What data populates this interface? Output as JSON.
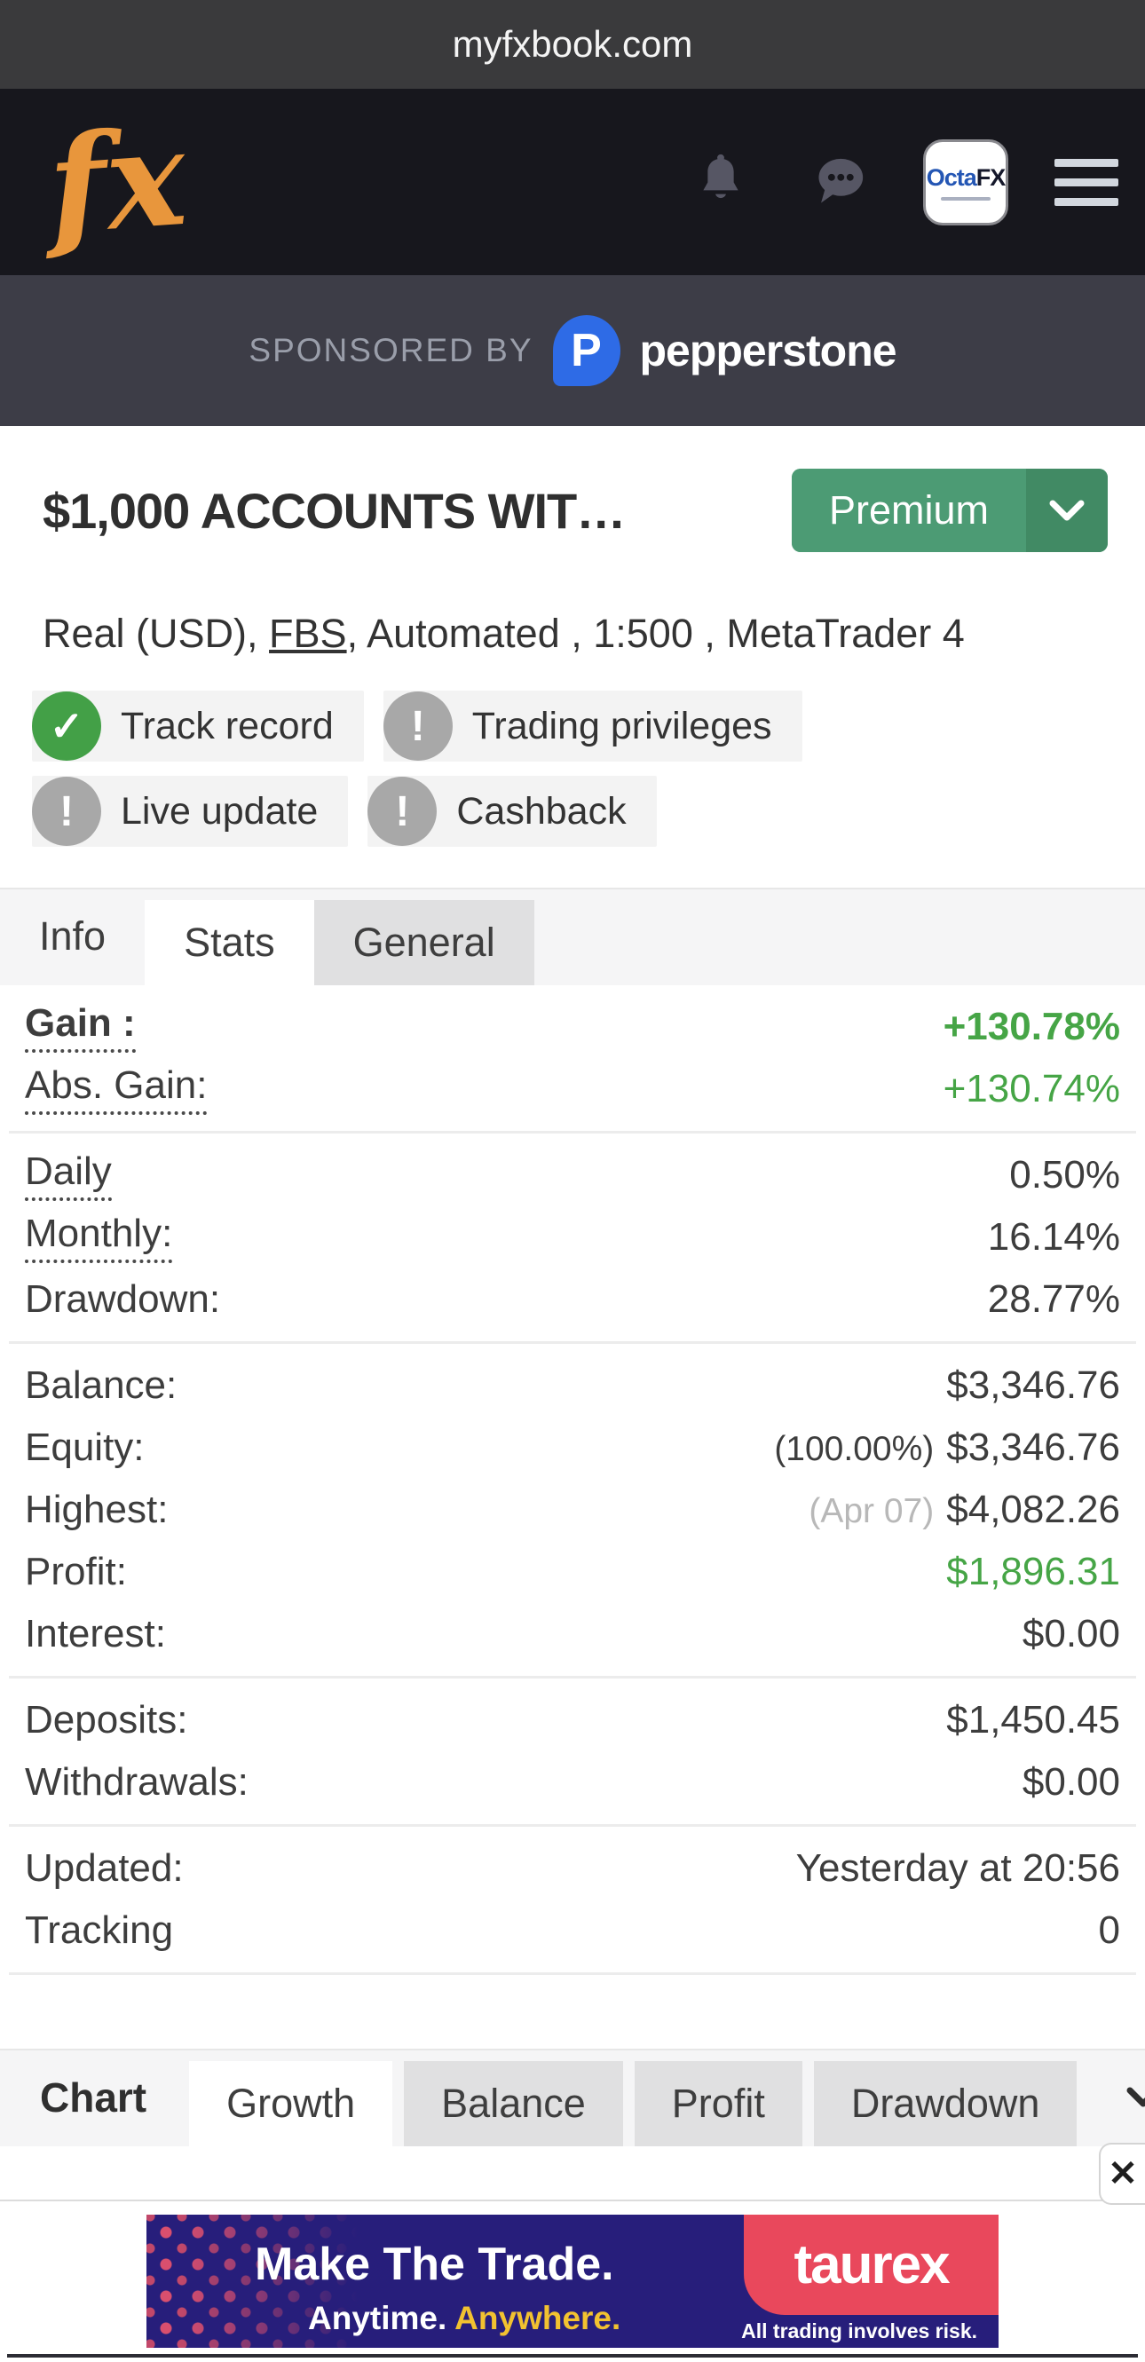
{
  "browser_bar": {
    "url": "myfxbook.com"
  },
  "header": {
    "logo_text": "fx",
    "broker_logo": {
      "blue_part": "Octa",
      "dark_part": "FX"
    }
  },
  "sponsor": {
    "label": "SPONSORED BY",
    "brand_initial": "P",
    "brand": "pepperstone",
    "brand_color": "#2E6BE6"
  },
  "account": {
    "title": "$1,000 ACCOUNTS WIT…",
    "premium_label": "Premium",
    "subtitle": {
      "pre": "Real (USD), ",
      "link": "FBS",
      "post": ", Automated , 1:500 , MetaTrader 4"
    },
    "badges": [
      {
        "label": "Track record",
        "status": "ok",
        "glyph": "✓"
      },
      {
        "label": "Trading privileges",
        "status": "warn",
        "glyph": "!"
      },
      {
        "label": "Live update",
        "status": "warn",
        "glyph": "!"
      },
      {
        "label": "Cashback",
        "status": "warn",
        "glyph": "!"
      }
    ]
  },
  "info_tabs": [
    {
      "label": "Info",
      "style": "plain"
    },
    {
      "label": "Stats",
      "style": "active"
    },
    {
      "label": "General",
      "style": "gray"
    }
  ],
  "stats": {
    "groups": [
      [
        {
          "label": "Gain :",
          "value": "+130.78%",
          "dotted": true,
          "bold": true,
          "green": true
        },
        {
          "label": "Abs. Gain:",
          "value": "+130.74%",
          "dotted": true,
          "green": true
        }
      ],
      [
        {
          "label": "Daily",
          "value": "0.50%",
          "dotted": true
        },
        {
          "label": "Monthly:",
          "value": "16.14%",
          "dotted": true
        },
        {
          "label": "Drawdown:",
          "value": "28.77%"
        }
      ],
      [
        {
          "label": "Balance:",
          "value": "$3,346.76"
        },
        {
          "label": "Equity:",
          "prefix": "(100.00%)",
          "value": "$3,346.76"
        },
        {
          "label": "Highest:",
          "prefix": "(Apr 07)",
          "prefix_muted": true,
          "value": "$4,082.26"
        },
        {
          "label": "Profit:",
          "value": "$1,896.31",
          "green": true
        },
        {
          "label": "Interest:",
          "value": "$0.00"
        }
      ],
      [
        {
          "label": "Deposits:",
          "value": "$1,450.45"
        },
        {
          "label": "Withdrawals:",
          "value": "$0.00"
        }
      ],
      [
        {
          "label": "Updated:",
          "value": "Yesterday at 20:56"
        },
        {
          "label": "Tracking",
          "value": "0"
        }
      ]
    ]
  },
  "chart_section": {
    "label": "Chart",
    "tabs": [
      {
        "label": "Growth",
        "active": true
      },
      {
        "label": "Balance",
        "active": false
      },
      {
        "label": "Profit",
        "active": false
      },
      {
        "label": "Drawdown",
        "active": false
      }
    ]
  },
  "ad": {
    "headline": "Make The Trade.",
    "sub_white": "Anytime. ",
    "sub_yellow": "Anywhere.",
    "brand": "taurex",
    "disclaimer": "All trading involves risk.",
    "close_glyph": "✕",
    "bg_color": "#271E7B",
    "brand_color": "#E9485C",
    "accent_yellow": "#F2C230"
  },
  "colors": {
    "gain_green": "#46A546",
    "premium_green": "#4C9B74",
    "badge_ok_green": "#43A047",
    "badge_warn_gray": "#A8A8A8",
    "fx_logo_orange": "#E8963C"
  }
}
